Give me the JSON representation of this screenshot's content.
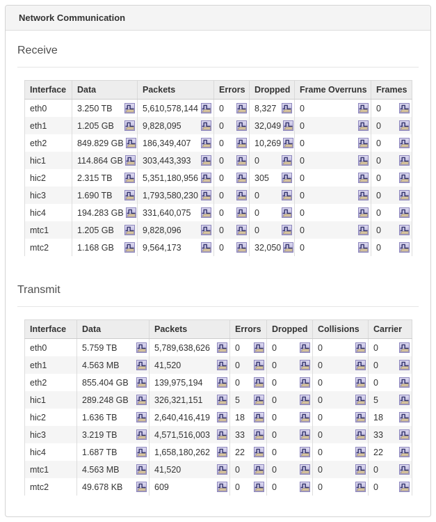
{
  "panel": {
    "title": "Network Communication"
  },
  "icon": {
    "name": "chart-history-icon"
  },
  "colors": {
    "panel_header_bg": "#f4f4f4",
    "panel_border": "#d4d4d4",
    "table_header_bg": "#ededed",
    "row_alt_bg": "#f5f5f5",
    "icon_border": "#8d86bd",
    "icon_bg_top": "#dedbf1",
    "icon_bg_bottom": "#aba5d1",
    "icon_step_line": "#32326b",
    "icon_base_fill": "#d9c6a0"
  },
  "sections": [
    {
      "title": "Receive",
      "columns": [
        "Interface",
        "Data",
        "Packets",
        "Errors",
        "Dropped",
        "Frame Overruns",
        "Frames"
      ],
      "rows": [
        {
          "cells": [
            "eth0",
            "3.250 TB",
            "5,610,578,144",
            "0",
            "8,327",
            "0",
            "0"
          ]
        },
        {
          "cells": [
            "eth1",
            "1.205 GB",
            "9,828,095",
            "0",
            "32,049",
            "0",
            "0"
          ]
        },
        {
          "cells": [
            "eth2",
            "849.829 GB",
            "186,349,407",
            "0",
            "10,269",
            "0",
            "0"
          ]
        },
        {
          "cells": [
            "hic1",
            "114.864 GB",
            "303,443,393",
            "0",
            "0",
            "0",
            "0"
          ]
        },
        {
          "cells": [
            "hic2",
            "2.315 TB",
            "5,351,180,956",
            "0",
            "305",
            "0",
            "0"
          ]
        },
        {
          "cells": [
            "hic3",
            "1.690 TB",
            "1,793,580,230",
            "0",
            "0",
            "0",
            "0"
          ]
        },
        {
          "cells": [
            "hic4",
            "194.283 GB",
            "331,640,075",
            "0",
            "0",
            "0",
            "0"
          ]
        },
        {
          "cells": [
            "mtc1",
            "1.205 GB",
            "9,828,096",
            "0",
            "0",
            "0",
            "0"
          ]
        },
        {
          "cells": [
            "mtc2",
            "1.168 GB",
            "9,564,173",
            "0",
            "32,050",
            "0",
            "0"
          ]
        }
      ]
    },
    {
      "title": "Transmit",
      "columns": [
        "Interface",
        "Data",
        "Packets",
        "Errors",
        "Dropped",
        "Collisions",
        "Carrier"
      ],
      "rows": [
        {
          "cells": [
            "eth0",
            "5.759 TB",
            "5,789,638,626",
            "0",
            "0",
            "0",
            "0"
          ]
        },
        {
          "cells": [
            "eth1",
            "4.563 MB",
            "41,520",
            "0",
            "0",
            "0",
            "0"
          ]
        },
        {
          "cells": [
            "eth2",
            "855.404 GB",
            "139,975,194",
            "0",
            "0",
            "0",
            "0"
          ]
        },
        {
          "cells": [
            "hic1",
            "289.248 GB",
            "326,321,151",
            "5",
            "0",
            "0",
            "5"
          ]
        },
        {
          "cells": [
            "hic2",
            "1.636 TB",
            "2,640,416,419",
            "18",
            "0",
            "0",
            "18"
          ]
        },
        {
          "cells": [
            "hic3",
            "3.219 TB",
            "4,571,516,003",
            "33",
            "0",
            "0",
            "33"
          ]
        },
        {
          "cells": [
            "hic4",
            "1.687 TB",
            "1,658,180,262",
            "22",
            "0",
            "0",
            "22"
          ]
        },
        {
          "cells": [
            "mtc1",
            "4.563 MB",
            "41,520",
            "0",
            "0",
            "0",
            "0"
          ]
        },
        {
          "cells": [
            "mtc2",
            "49.678 KB",
            "609",
            "0",
            "0",
            "0",
            "0"
          ]
        }
      ]
    }
  ]
}
